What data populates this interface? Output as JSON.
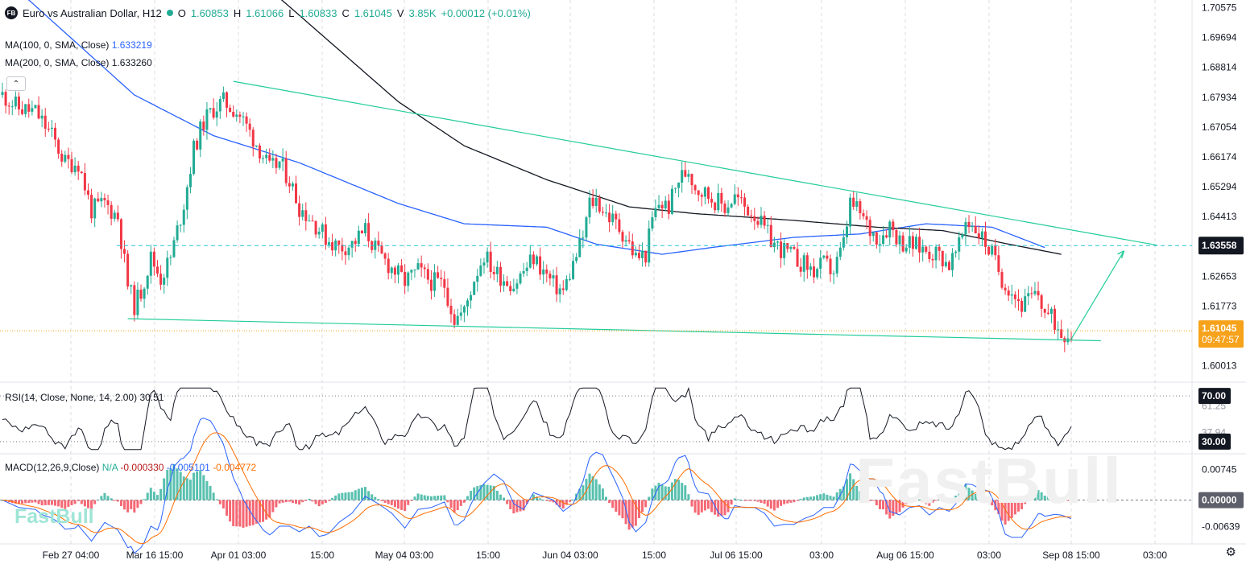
{
  "header": {
    "symbol_badge": "FB",
    "title": "Euro vs Australian Dollar, H12",
    "open_label": "O",
    "open": "1.60853",
    "high_label": "H",
    "high": "1.61066",
    "low_label": "L",
    "low": "1.60833",
    "close_label": "C",
    "close": "1.61045",
    "volume_label": "V",
    "volume": "3.85K",
    "change": "+0.00012 (+0.01%)"
  },
  "indicators": {
    "ma100": {
      "label": "MA(100, 0, SMA, Close)",
      "value": "1.633219"
    },
    "ma200": {
      "label": "MA(200, 0, SMA, Close)",
      "value": "1.633260"
    },
    "rsi": {
      "label": "RSI(14, Close, None, 14, 2.00)",
      "value": "30.51"
    },
    "macd": {
      "label": "MACD(12,26,9,Close)",
      "na": "N/A",
      "hist": "-0.000330",
      "macd": "-0.005101",
      "signal": "-0.004772"
    }
  },
  "price_axis": {
    "labels": [
      "1.70575",
      "1.69694",
      "1.68814",
      "1.67934",
      "1.67054",
      "1.66174",
      "1.65294",
      "1.64413",
      "1.63558",
      "1.62653",
      "1.61773",
      "1.61045",
      "1.60013"
    ],
    "dashed_level": "1.63558",
    "current_price": "1.61045",
    "countdown": "09:47:57"
  },
  "rsi_axis": {
    "upper": "70.00",
    "mid_a": "61.25",
    "mid_b": "37.94",
    "lower": "30.00"
  },
  "macd_axis": {
    "top": "0.00745",
    "zero": "0.00000",
    "bottom": "-0.00639"
  },
  "time_axis": [
    "Feb 27 04:00",
    "Mar 16 15:00",
    "Apr 01 03:00",
    "15:00",
    "May 04 03:00",
    "15:00",
    "Jun 04 03:00",
    "15:00",
    "Jul 06 15:00",
    "03:00",
    "Aug 06 15:00",
    "03:00",
    "Sep 08 15:00",
    "03:00"
  ],
  "watermark": "FastBull",
  "colors": {
    "up": "#22ab94",
    "down": "#f23645",
    "ma100": "#2962ff",
    "ma200": "#131722",
    "trend": "#22cc99",
    "macd": "#2962ff",
    "signal": "#ff6d00",
    "price_badge": "#f7a21b",
    "level_badge": "#131722"
  },
  "chart_data": {
    "type": "candlestick",
    "title": "Euro vs Australian Dollar, H12",
    "y_range": [
      1.596,
      1.708
    ],
    "x_labels": [
      "Feb 27 04:00",
      "Mar 16 15:00",
      "Apr 01 03:00",
      "15:00",
      "May 04 03:00",
      "15:00",
      "Jun 04 03:00",
      "15:00",
      "Jul 06 15:00",
      "03:00",
      "Aug 06 15:00",
      "03:00",
      "Sep 08 15:00",
      "03:00"
    ],
    "price_path": [
      [
        0,
        1.68
      ],
      [
        5,
        1.676
      ],
      [
        10,
        1.675
      ],
      [
        15,
        1.668
      ],
      [
        19,
        1.66
      ],
      [
        23,
        1.66
      ],
      [
        27,
        1.646
      ],
      [
        31,
        1.648
      ],
      [
        35,
        1.644
      ],
      [
        38,
        1.624
      ],
      [
        40,
        1.618
      ],
      [
        42,
        1.622
      ],
      [
        45,
        1.632
      ],
      [
        48,
        1.626
      ],
      [
        51,
        1.632
      ],
      [
        55,
        1.648
      ],
      [
        58,
        1.664
      ],
      [
        61,
        1.672
      ],
      [
        64,
        1.676
      ],
      [
        67,
        1.678
      ],
      [
        70,
        1.676
      ],
      [
        72,
        1.674
      ],
      [
        75,
        1.669
      ],
      [
        78,
        1.664
      ],
      [
        81,
        1.658
      ],
      [
        84,
        1.66
      ],
      [
        87,
        1.655
      ],
      [
        90,
        1.647
      ],
      [
        94,
        1.643
      ],
      [
        98,
        1.638
      ],
      [
        102,
        1.635
      ],
      [
        106,
        1.636
      ],
      [
        110,
        1.64
      ],
      [
        114,
        1.633
      ],
      [
        118,
        1.629
      ],
      [
        122,
        1.625
      ],
      [
        126,
        1.628
      ],
      [
        130,
        1.625
      ],
      [
        134,
        1.624
      ],
      [
        137,
        1.614
      ],
      [
        140,
        1.616
      ],
      [
        143,
        1.626
      ],
      [
        146,
        1.633
      ],
      [
        149,
        1.628
      ],
      [
        152,
        1.626
      ],
      [
        155,
        1.624
      ],
      [
        158,
        1.628
      ],
      [
        161,
        1.632
      ],
      [
        164,
        1.628
      ],
      [
        167,
        1.624
      ],
      [
        170,
        1.622
      ],
      [
        173,
        1.63
      ],
      [
        176,
        1.638
      ],
      [
        178,
        1.648
      ],
      [
        180,
        1.649
      ],
      [
        183,
        1.645
      ],
      [
        186,
        1.642
      ],
      [
        189,
        1.638
      ],
      [
        192,
        1.632
      ],
      [
        195,
        1.633
      ],
      [
        197,
        1.643
      ],
      [
        199,
        1.648
      ],
      [
        202,
        1.647
      ],
      [
        205,
        1.655
      ],
      [
        208,
        1.658
      ],
      [
        210,
        1.653
      ],
      [
        213,
        1.651
      ],
      [
        216,
        1.649
      ],
      [
        219,
        1.647
      ],
      [
        222,
        1.65
      ],
      [
        225,
        1.647
      ],
      [
        228,
        1.645
      ],
      [
        231,
        1.64
      ],
      [
        234,
        1.636
      ],
      [
        237,
        1.634
      ],
      [
        240,
        1.632
      ],
      [
        243,
        1.63
      ],
      [
        246,
        1.628
      ],
      [
        249,
        1.63
      ],
      [
        252,
        1.628
      ],
      [
        255,
        1.636
      ],
      [
        257,
        1.648
      ],
      [
        260,
        1.645
      ],
      [
        263,
        1.64
      ],
      [
        266,
        1.638
      ],
      [
        269,
        1.642
      ],
      [
        272,
        1.637
      ],
      [
        275,
        1.636
      ],
      [
        278,
        1.635
      ],
      [
        281,
        1.634
      ],
      [
        284,
        1.633
      ],
      [
        287,
        1.63
      ],
      [
        290,
        1.635
      ],
      [
        292,
        1.643
      ],
      [
        294,
        1.642
      ],
      [
        297,
        1.638
      ],
      [
        300,
        1.633
      ],
      [
        303,
        1.626
      ],
      [
        306,
        1.622
      ],
      [
        309,
        1.618
      ],
      [
        312,
        1.62
      ],
      [
        314,
        1.621
      ],
      [
        316,
        1.616
      ],
      [
        319,
        1.613
      ],
      [
        321,
        1.61
      ]
    ],
    "ma100_path": [
      [
        0,
        1.715
      ],
      [
        40,
        1.68
      ],
      [
        64,
        1.668
      ],
      [
        90,
        1.66
      ],
      [
        120,
        1.648
      ],
      [
        140,
        1.642
      ],
      [
        165,
        1.641
      ],
      [
        180,
        1.636
      ],
      [
        200,
        1.633
      ],
      [
        215,
        1.635
      ],
      [
        240,
        1.638
      ],
      [
        260,
        1.639
      ],
      [
        280,
        1.642
      ],
      [
        300,
        1.641
      ],
      [
        316,
        1.635
      ]
    ],
    "ma200_path": [
      [
        80,
        1.712
      ],
      [
        100,
        1.695
      ],
      [
        120,
        1.678
      ],
      [
        140,
        1.665
      ],
      [
        165,
        1.655
      ],
      [
        190,
        1.647
      ],
      [
        210,
        1.645
      ],
      [
        240,
        1.643
      ],
      [
        265,
        1.641
      ],
      [
        285,
        1.64
      ],
      [
        305,
        1.636
      ],
      [
        321,
        1.633
      ]
    ],
    "trendlines": [
      {
        "from": [
          70,
          1.684
        ],
        "to": [
          350,
          1.6357
        ]
      },
      {
        "from": [
          38,
          1.614
        ],
        "to": [
          333,
          1.6075
        ]
      },
      {
        "from": [
          324,
          1.608
        ],
        "to": [
          340,
          1.634
        ]
      }
    ],
    "rsi_range": [
      20,
      80
    ],
    "macd_range": [
      -0.01,
      0.011
    ]
  }
}
